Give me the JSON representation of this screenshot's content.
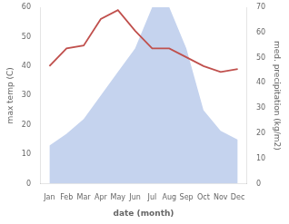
{
  "chart_data": {
    "type": "line",
    "xlabel": "date (month)",
    "ylabel": "max temp (C)",
    "y2label": "med. precipitation (kg/m2)",
    "categories": [
      "Jan",
      "Feb",
      "Mar",
      "Apr",
      "May",
      "Jun",
      "Jul",
      "Aug",
      "Sep",
      "Oct",
      "Nov",
      "Dec"
    ],
    "series": [
      {
        "type": "area",
        "color": "#c5d3ee",
        "values": [
          13,
          17,
          22,
          30,
          38,
          46,
          60,
          60,
          46,
          25,
          18,
          15
        ]
      },
      {
        "type": "line",
        "color": "#c0504d",
        "values": [
          40,
          46,
          47,
          56,
          59,
          52,
          46,
          46,
          43,
          40,
          38,
          39
        ]
      }
    ],
    "ylim": [
      0,
      60
    ],
    "yticks": [
      0,
      10,
      20,
      30,
      40,
      50,
      60
    ],
    "y2lim": [
      0,
      70
    ],
    "y2ticks": [
      0,
      10,
      20,
      30,
      40,
      50,
      60,
      70
    ],
    "grid": false
  }
}
